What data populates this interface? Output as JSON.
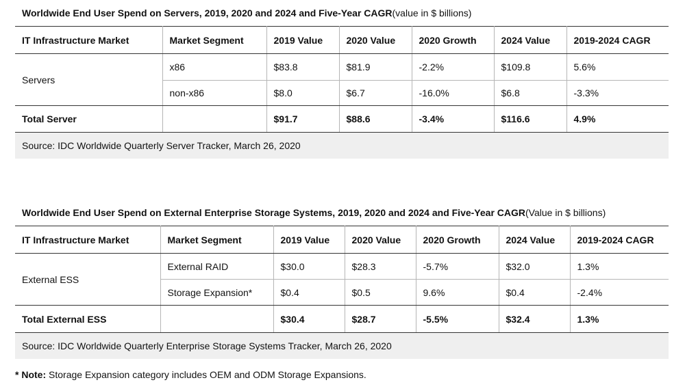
{
  "tables": [
    {
      "title_bold": "Worldwide End User Spend on Servers, 2019, 2020 and 2024 and Five-Year CAGR",
      "title_rest": " (value in $ billions)",
      "headers": [
        "IT Infrastructure Market",
        "Market Segment",
        "2019 Value",
        "2020 Value",
        "2020 Growth",
        "2024 Value",
        "2019-2024 CAGR"
      ],
      "group_label": "Servers",
      "rows": [
        [
          "x86",
          "$83.8",
          "$81.9",
          "-2.2%",
          "$109.8",
          "5.6%"
        ],
        [
          "non-x86",
          "$8.0",
          "$6.7",
          "-16.0%",
          "$6.8",
          "-3.3%"
        ]
      ],
      "total": [
        "Total Server",
        "",
        "$91.7",
        "$88.6",
        "-3.4%",
        "$116.6",
        "4.9%"
      ],
      "source": "Source: IDC Worldwide Quarterly Server Tracker, March 26, 2020"
    },
    {
      "title_bold": "Worldwide End User Spend on External Enterprise Storage Systems, 2019, 2020 and 2024 and Five-Year CAGR",
      "title_rest": " (Value in $ billions)",
      "headers": [
        "IT Infrastructure Market",
        "Market Segment",
        "2019 Value",
        "2020 Value",
        "2020 Growth",
        "2024 Value",
        "2019-2024 CAGR"
      ],
      "group_label": "External ESS",
      "rows": [
        [
          "External RAID",
          "$30.0",
          "$28.3",
          "-5.7%",
          "$32.0",
          "1.3%"
        ],
        [
          "Storage Expansion*",
          "$0.4",
          "$0.5",
          "9.6%",
          "$0.4",
          "-2.4%"
        ]
      ],
      "total": [
        "Total External ESS",
        "",
        "$30.4",
        "$28.7",
        "-5.5%",
        "$32.4",
        "1.3%"
      ],
      "source": "Source: IDC Worldwide Quarterly Enterprise Storage Systems Tracker, March 26, 2020"
    }
  ],
  "note": {
    "bold": "* Note:",
    "text": " Storage Expansion category includes OEM and ODM Storage Expansions."
  }
}
